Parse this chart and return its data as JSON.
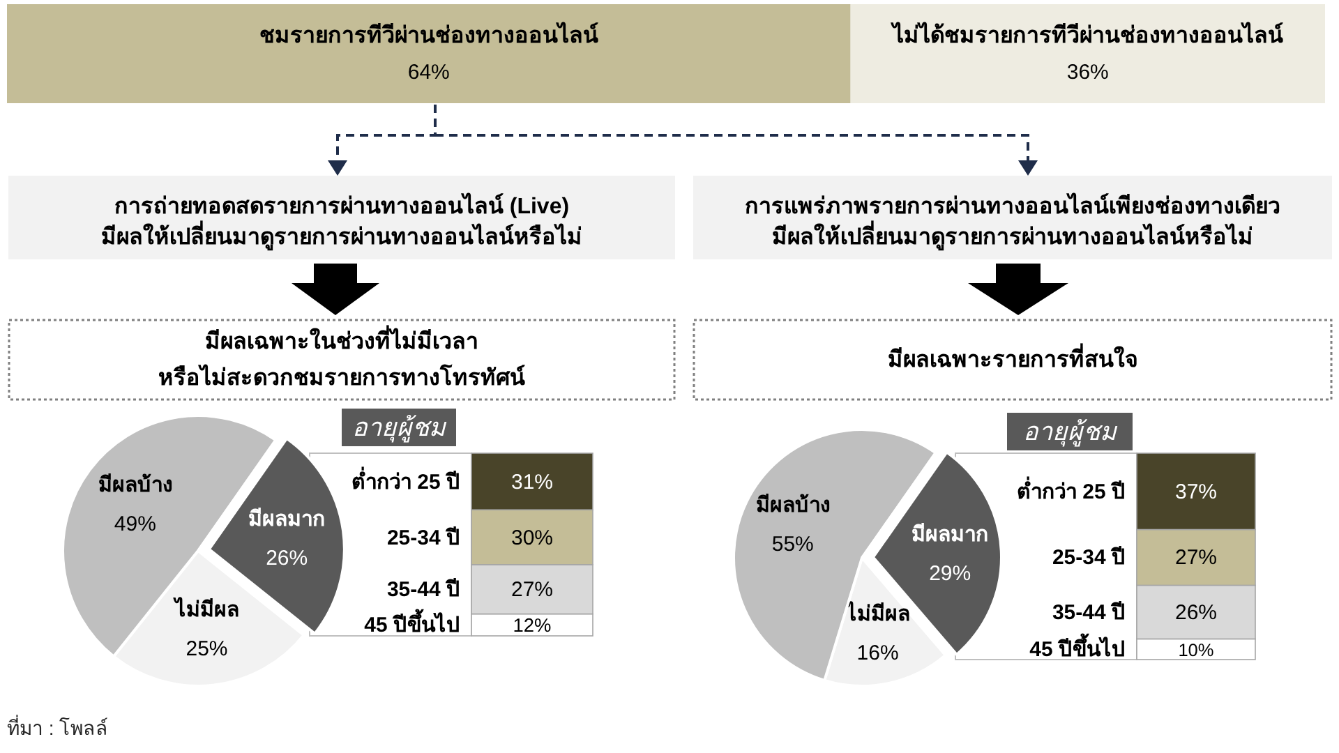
{
  "chart_data": [
    {
      "type": "bar",
      "orientation": "horizontal",
      "stacked": true,
      "categories": [
        null
      ],
      "xlim": [
        0,
        100
      ],
      "tick_labels": false,
      "series": [
        {
          "name": "ชมรายการทีวีผ่านช่องทางออนไลน์",
          "color": "#c4bd97",
          "values": [
            64
          ],
          "value_labels": [
            "64%"
          ]
        },
        {
          "name": "ไม่ได้ชมรายการทีวีผ่านช่องทางออนไลน์",
          "color": "#eeece1",
          "values": [
            36
          ],
          "value_labels": [
            "36%"
          ]
        }
      ]
    },
    {
      "type": "other",
      "annotations": [
        "การถ่ายทอดสดรายการผ่านทางออนไลน์ (Live)",
        "มีผลให้เปลี่ยนมาดูรายการผ่านทางออนไลน์หรือไม่",
        "มีผลเฉพาะในช่วงที่ไม่มีเวลา",
        "หรือไม่สะดวกชมรายการทางโทรทัศน์"
      ]
    },
    {
      "type": "pie",
      "categories": [
        "มีผลมาก",
        "ไม่มีผล",
        "มีผลบ้าง"
      ],
      "values": [
        26,
        25,
        49
      ],
      "colors": [
        "#595959",
        "#f2f2f2",
        "#bfbfbf"
      ],
      "value_labels": [
        "26%",
        "25%",
        "49%"
      ]
    },
    {
      "type": "bar",
      "stacked": true,
      "title": "อายุผู้ชม",
      "categories": [
        null
      ],
      "ylim": [
        0,
        100
      ],
      "tick_labels": false,
      "series": [
        {
          "name": "45 ปีขึ้นไป",
          "color": "#ffffff",
          "values": [
            12
          ],
          "value_labels": [
            "12%"
          ]
        },
        {
          "name": "35-44 ปี",
          "color": "#d9d9d9",
          "values": [
            27
          ],
          "value_labels": [
            "27%"
          ]
        },
        {
          "name": "25-34 ปี",
          "color": "#c4bd97",
          "values": [
            30
          ],
          "value_labels": [
            "30%"
          ]
        },
        {
          "name": "ต่ำกว่า 25 ปี",
          "color": "#494429",
          "values": [
            31
          ],
          "value_labels": [
            "31%"
          ]
        }
      ]
    },
    {
      "type": "other",
      "annotations": [
        "การแพร่ภาพรายการผ่านทางออนไลน์เพียงช่องทางเดียว",
        "มีผลให้เปลี่ยนมาดูรายการผ่านทางออนไลน์หรือไม่",
        "มีผลเฉพาะรายการที่สนใจ"
      ]
    },
    {
      "type": "pie",
      "categories": [
        "มีผลมาก",
        "ไม่มีผล",
        "มีผลบ้าง"
      ],
      "values": [
        29,
        16,
        55
      ],
      "colors": [
        "#595959",
        "#f2f2f2",
        "#bfbfbf"
      ],
      "value_labels": [
        "29%",
        "16%",
        "55%"
      ]
    },
    {
      "type": "bar",
      "stacked": true,
      "title": "อายุผู้ชม",
      "categories": [
        null
      ],
      "ylim": [
        0,
        100
      ],
      "tick_labels": false,
      "series": [
        {
          "name": "45 ปีขึ้นไป",
          "color": "#ffffff",
          "values": [
            10
          ],
          "value_labels": [
            "10%"
          ]
        },
        {
          "name": "35-44 ปี",
          "color": "#d9d9d9",
          "values": [
            26
          ],
          "value_labels": [
            "26%"
          ]
        },
        {
          "name": "25-34 ปี",
          "color": "#c4bd97",
          "values": [
            27
          ],
          "value_labels": [
            "27%"
          ]
        },
        {
          "name": "ต่ำกว่า 25 ปี",
          "color": "#494429",
          "values": [
            37
          ],
          "value_labels": [
            "37%"
          ]
        }
      ]
    },
    {
      "type": "other",
      "annotations": [
        "ที่มา : โพลล์"
      ]
    }
  ]
}
